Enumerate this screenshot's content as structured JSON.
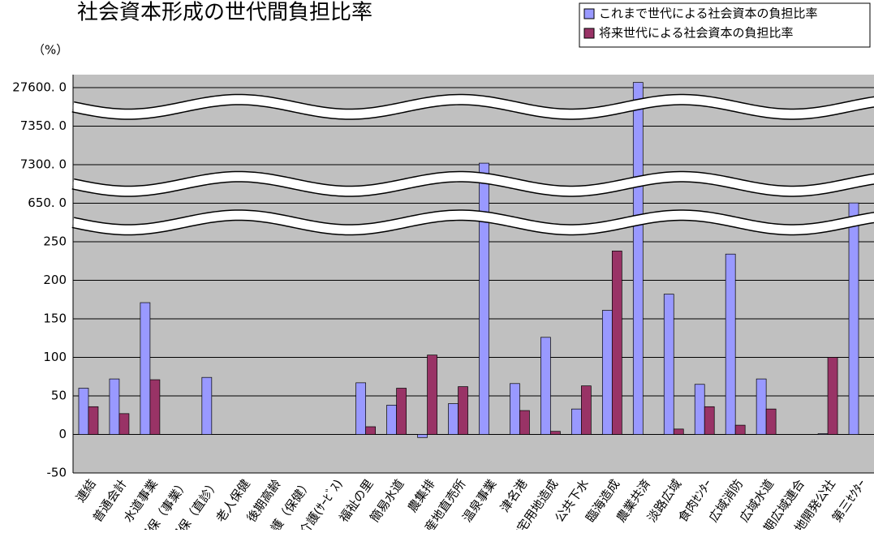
{
  "chart_data": {
    "type": "bar",
    "title": "社会資本形成の世代間負担比率",
    "y_unit": "（%）",
    "categories": [
      "連結",
      "普通会計",
      "水道事業",
      "国保（事業）",
      "国保（直診）",
      "老人保健",
      "後期高齢",
      "介護（保健）",
      "介護(ｻｰﾋﾞｽ)",
      "福祉の里",
      "簡易水道",
      "農集排",
      "産地直売所",
      "温泉事業",
      "津名港",
      "住宅用地造成",
      "公共下水",
      "臨海造成",
      "農業共済",
      "淡路広域",
      "食肉ｾﾝﾀｰ",
      "広域消防",
      "広域水道",
      "後期広域連合",
      "土地開発公社",
      "第三ｾｸﾀｰ"
    ],
    "series": [
      {
        "name": "これまで世代による社会資本の負担比率",
        "color": "#9999ff",
        "values": [
          60,
          72,
          171,
          null,
          74,
          null,
          null,
          null,
          null,
          67,
          38,
          -4,
          40,
          7302,
          66,
          126,
          33,
          161,
          27640,
          182,
          65,
          234,
          72,
          null,
          1,
          700
        ]
      },
      {
        "name": "将来世代による社会資本の負担比率",
        "color": "#993366",
        "values": [
          36,
          27,
          71,
          null,
          null,
          null,
          null,
          null,
          null,
          10,
          60,
          103,
          62,
          null,
          31,
          4,
          63,
          238,
          null,
          7,
          36,
          12,
          33,
          null,
          100,
          null
        ]
      }
    ],
    "ylim": [
      -50,
      27700
    ],
    "yticks": [
      -50,
      0,
      50,
      100,
      150,
      200,
      250,
      {
        "value": 650,
        "label": "650. 0"
      },
      {
        "value": 7300,
        "label": "7300. 0"
      },
      {
        "value": 7350,
        "label": "7350. 0"
      },
      {
        "value": 27600,
        "label": "27600. 0"
      }
    ],
    "grid": true,
    "axis_breaks": true,
    "legend": "upper right",
    "plot_background": "#c0c0c0"
  }
}
